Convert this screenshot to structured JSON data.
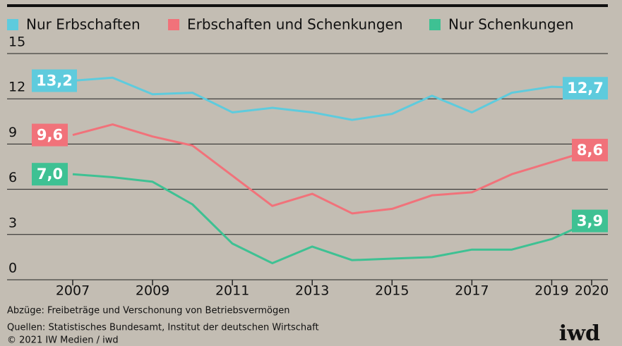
{
  "chart_data": {
    "type": "line",
    "x": [
      2007,
      2008,
      2009,
      2010,
      2011,
      2012,
      2013,
      2014,
      2015,
      2016,
      2017,
      2018,
      2019,
      2020
    ],
    "series": [
      {
        "name": "Nur Erbschaften",
        "color": "#5ecbdd",
        "values": [
          13.2,
          13.4,
          12.3,
          12.4,
          11.1,
          11.4,
          11.1,
          10.6,
          11.0,
          12.2,
          11.1,
          12.4,
          12.8,
          12.7
        ],
        "value_labels": [
          "13,2",
          null,
          null,
          null,
          null,
          null,
          null,
          null,
          null,
          null,
          null,
          null,
          null,
          "12,7"
        ]
      },
      {
        "name": "Erbschaften und Schenkungen",
        "color": "#f1727a",
        "values": [
          9.6,
          10.3,
          9.5,
          8.9,
          6.9,
          4.9,
          5.7,
          4.4,
          4.7,
          5.6,
          5.8,
          7.0,
          7.8,
          8.6
        ],
        "value_labels": [
          "9,6",
          null,
          null,
          null,
          null,
          null,
          null,
          null,
          null,
          null,
          null,
          null,
          null,
          "8,6"
        ]
      },
      {
        "name": "Nur Schenkungen",
        "color": "#3ec193",
        "values": [
          7.0,
          6.8,
          6.5,
          5.0,
          2.4,
          1.1,
          2.2,
          1.3,
          1.4,
          1.5,
          2.0,
          2.0,
          2.7,
          3.9
        ],
        "value_labels": [
          "7,0",
          null,
          null,
          null,
          null,
          null,
          null,
          null,
          null,
          null,
          null,
          null,
          null,
          "3,9"
        ]
      }
    ],
    "xlim": [
      2007,
      2020
    ],
    "xticks": [
      2007,
      2009,
      2011,
      2013,
      2015,
      2017,
      2019,
      2020
    ],
    "ylim": [
      0,
      15
    ],
    "yticks": [
      0,
      3,
      6,
      9,
      12,
      15
    ],
    "grid": true,
    "notes": [
      "Abzüge: Freibeträge und Verschonung von Betriebsvermögen",
      "Quellen: Statistisches Bundesamt, Institut der deutschen Wirtschaft",
      "© 2021 IW Medien / iwd"
    ],
    "logo": "iwd"
  }
}
